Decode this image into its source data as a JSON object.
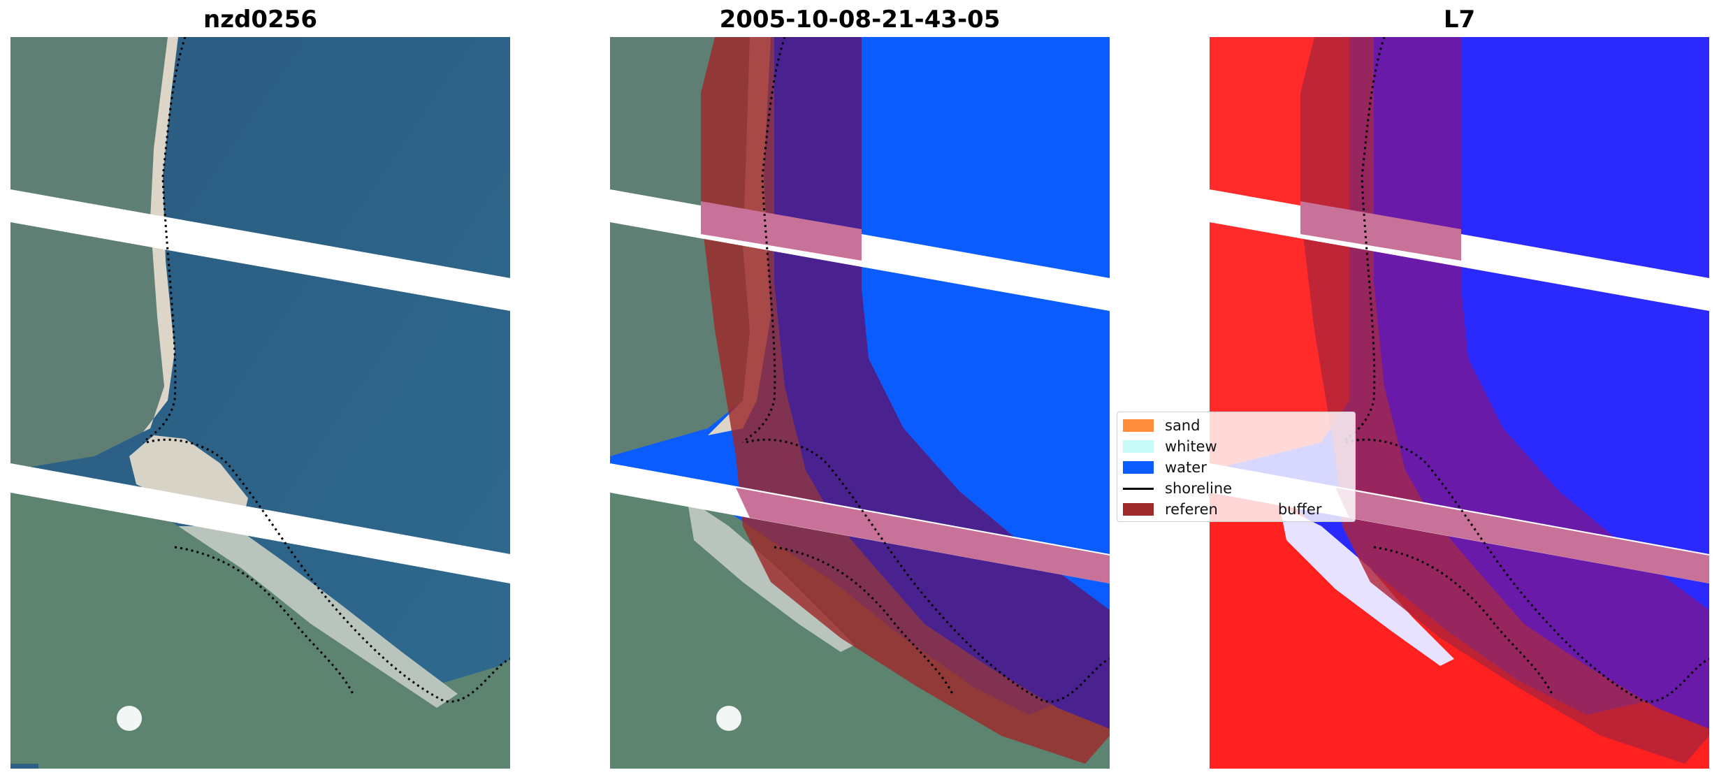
{
  "panels": [
    {
      "title": "nzd0256"
    },
    {
      "title": "2005-10-08-21-43-05"
    },
    {
      "title": "L7"
    }
  ],
  "legend": {
    "items": [
      {
        "label": "sand",
        "color": "#ff8c3a",
        "kind": "patch"
      },
      {
        "label": "whitew",
        "color": "#c8fbf8",
        "kind": "patch"
      },
      {
        "label": "water",
        "color": "#0a5cff",
        "kind": "patch"
      },
      {
        "label": "shoreline",
        "color": "#000000",
        "kind": "line"
      },
      {
        "label": "referen",
        "color": "#9e2a2b",
        "kind": "patch"
      },
      {
        "label": "buffer",
        "color": "#9e2a2b",
        "kind": "text"
      }
    ]
  },
  "colors": {
    "ocean": "#2b5f86",
    "land": "#5d7e72",
    "beach": "#d9d2c4",
    "water_class": "#0a5cff",
    "buffer": "#9e2a2b",
    "l7_land": "#ff1f1f",
    "l7_water": "#2a2aff"
  }
}
